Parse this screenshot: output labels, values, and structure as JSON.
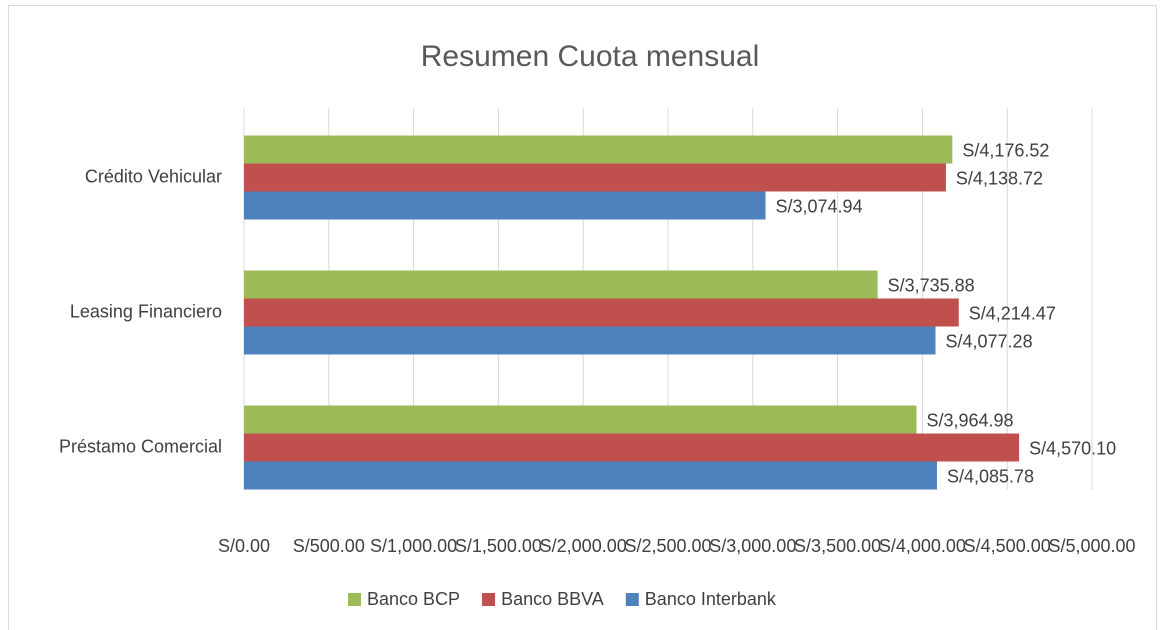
{
  "chart_data": {
    "type": "hbar",
    "title": "Resumen Cuota mensual",
    "categories": [
      "Crédito Vehicular",
      "Leasing Financiero",
      "Préstamo Comercial"
    ],
    "series": [
      {
        "name": "Banco BCP",
        "color": "#9bbb59",
        "values": [
          4176.52,
          3735.88,
          3964.98
        ],
        "value_labels": [
          "S/4,176.52",
          "S/3,735.88",
          "S/3,964.98"
        ]
      },
      {
        "name": "Banco BBVA",
        "color": "#c0504d",
        "values": [
          4138.72,
          4214.47,
          4570.1
        ],
        "value_labels": [
          "S/4,138.72",
          "S/4,214.47",
          "S/4,570.10"
        ]
      },
      {
        "name": "Banco Interbank",
        "color": "#4f81bd",
        "values": [
          3074.94,
          4077.28,
          4085.78
        ],
        "value_labels": [
          "S/3,074.94",
          "S/4,077.28",
          "S/4,085.78"
        ]
      }
    ],
    "xlim": [
      0,
      5000
    ],
    "xticks": [
      {
        "value": 0,
        "label": "S/0.00"
      },
      {
        "value": 500,
        "label": "S/500.00"
      },
      {
        "value": 1000,
        "label": "S/1,000.00"
      },
      {
        "value": 1500,
        "label": "S/1,500.00"
      },
      {
        "value": 2000,
        "label": "S/2,000.00"
      },
      {
        "value": 2500,
        "label": "S/2,500.00"
      },
      {
        "value": 3000,
        "label": "S/3,000.00"
      },
      {
        "value": 3500,
        "label": "S/3,500.00"
      },
      {
        "value": 4000,
        "label": "S/4,000.00"
      },
      {
        "value": 4500,
        "label": "S/4,500.00"
      },
      {
        "value": 5000,
        "label": "S/5,000.00"
      }
    ],
    "grid": true,
    "legend": "bottom"
  }
}
